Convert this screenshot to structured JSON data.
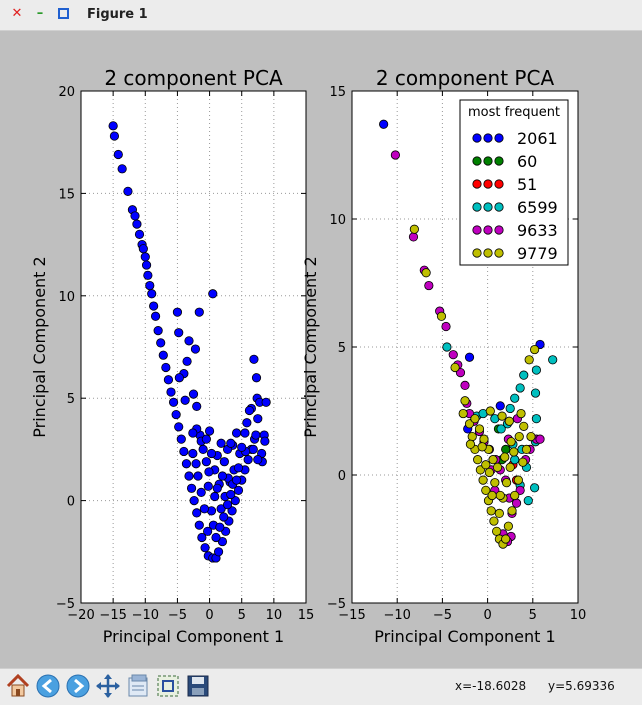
{
  "window": {
    "title": "Figure 1"
  },
  "toolbar": {
    "items": [
      "home-icon",
      "back-icon",
      "forward-icon",
      "pan-icon",
      "configure-icon",
      "zoom-icon",
      "save-icon"
    ],
    "x_readout": "x=-18.6028",
    "y_readout": "y=5.69336"
  },
  "colors": {
    "blue": "#0000ff",
    "green": "#008000",
    "red": "#ff0000",
    "cyan": "#00bfbf",
    "magenta": "#bf00bf",
    "yellow": "#bfbf00"
  },
  "chart_data": [
    {
      "type": "scatter",
      "title": "2 component PCA",
      "xlabel": "Principal Component 1",
      "ylabel": "Principal Component 2",
      "xlim": [
        -20,
        15
      ],
      "ylim": [
        -5,
        20
      ],
      "xticks": [
        "−20",
        "−15",
        "−10",
        "−5",
        "0",
        "5",
        "10",
        "15"
      ],
      "yticks": [
        "−5",
        "0",
        "5",
        "10",
        "15",
        "20"
      ],
      "grid": true,
      "series": [
        {
          "color": "#0000ff",
          "points": [
            [
              -15,
              18.3
            ],
            [
              -14.8,
              17.8
            ],
            [
              -14.2,
              16.9
            ],
            [
              -13.6,
              16.2
            ],
            [
              -12.7,
              15.1
            ],
            [
              -12,
              14.2
            ],
            [
              -11.6,
              13.9
            ],
            [
              -11.3,
              13.5
            ],
            [
              -10.9,
              13
            ],
            [
              -10.5,
              12.5
            ],
            [
              -10.3,
              12.3
            ],
            [
              -10,
              11.9
            ],
            [
              -9.8,
              11.5
            ],
            [
              -9.6,
              11
            ],
            [
              -9.3,
              10.5
            ],
            [
              -9,
              10.1
            ],
            [
              -8.7,
              9.5
            ],
            [
              -8.4,
              9
            ],
            [
              -8,
              8.3
            ],
            [
              -7.6,
              7.7
            ],
            [
              -7.2,
              7.1
            ],
            [
              -6.8,
              6.5
            ],
            [
              -6.4,
              5.9
            ],
            [
              -6,
              5.3
            ],
            [
              -5.6,
              4.8
            ],
            [
              -5.2,
              4.2
            ],
            [
              -4.8,
              3.6
            ],
            [
              -4.4,
              3
            ],
            [
              -4,
              2.4
            ],
            [
              -3.6,
              1.8
            ],
            [
              -3.2,
              1.2
            ],
            [
              -2.8,
              0.6
            ],
            [
              -2.4,
              0
            ],
            [
              -2,
              -0.6
            ],
            [
              -1.6,
              -1.2
            ],
            [
              -1.2,
              -1.8
            ],
            [
              -0.7,
              -2.3
            ],
            [
              -0.2,
              -2.7
            ],
            [
              0.5,
              -2.8
            ],
            [
              1,
              -2.8
            ],
            [
              1.4,
              -2.5
            ],
            [
              2,
              -2
            ],
            [
              2.5,
              -1.5
            ],
            [
              3,
              -1
            ],
            [
              3.5,
              -0.5
            ],
            [
              4,
              0
            ],
            [
              4.5,
              0.5
            ],
            [
              5,
              1
            ],
            [
              5.5,
              1.5
            ],
            [
              6,
              2
            ],
            [
              6.5,
              2.5
            ],
            [
              7,
              3
            ],
            [
              7.5,
              4
            ],
            [
              7.4,
              5
            ],
            [
              7.3,
              6
            ],
            [
              6.9,
              6.9
            ],
            [
              6.5,
              4.5
            ],
            [
              5.8,
              3.8
            ],
            [
              6.2,
              4.4
            ],
            [
              4.7,
              2.3
            ],
            [
              3.8,
              1.5
            ],
            [
              7.2,
              3.2
            ],
            [
              7.8,
              4.8
            ],
            [
              8.5,
              3.2
            ],
            [
              8.8,
              4.8
            ],
            [
              8.6,
              2.9
            ],
            [
              8.2,
              1.9
            ],
            [
              8.1,
              2.3
            ],
            [
              7.5,
              2
            ],
            [
              6.8,
              2.5
            ],
            [
              5.6,
              2.4
            ],
            [
              4.5,
              1.6
            ],
            [
              3.2,
              0.9
            ],
            [
              2.4,
              0.2
            ],
            [
              1.8,
              -0.4
            ],
            [
              2.9,
              1.1
            ],
            [
              3.6,
              2.7
            ],
            [
              4.2,
              3.3
            ],
            [
              5,
              2.6
            ],
            [
              5.5,
              3.3
            ],
            [
              2,
              1.2
            ],
            [
              1.5,
              0.8
            ],
            [
              0.8,
              1.5
            ],
            [
              -0.5,
              1.9
            ],
            [
              -1,
              2.5
            ],
            [
              -1.5,
              3.2
            ],
            [
              -2,
              3.5
            ],
            [
              -1.3,
              2.9
            ],
            [
              0,
              3.4
            ],
            [
              -0.5,
              3
            ],
            [
              1.2,
              2.2
            ],
            [
              1.8,
              2.8
            ],
            [
              -3.5,
              6.8
            ],
            [
              -3.2,
              7.8
            ],
            [
              -2.2,
              7.4
            ],
            [
              -2.5,
              5.2
            ],
            [
              -4,
              6.2
            ],
            [
              -4.8,
              8.2
            ],
            [
              -5,
              9.2
            ],
            [
              -4.7,
              6
            ],
            [
              -3.8,
              4.9
            ],
            [
              -2,
              4.6
            ],
            [
              -2.6,
              3.3
            ],
            [
              -1.6,
              9.2
            ],
            [
              0.5,
              10.1
            ],
            [
              -0.3,
              -1.5
            ],
            [
              0.3,
              -0.5
            ],
            [
              0.8,
              0.2
            ],
            [
              1.2,
              0.6
            ],
            [
              -0.8,
              -0.4
            ],
            [
              -1.3,
              0.4
            ],
            [
              -1.8,
              1.2
            ],
            [
              -0.2,
              0.7
            ],
            [
              0.6,
              -1.2
            ],
            [
              1,
              -1.8
            ],
            [
              1.6,
              -1.3
            ],
            [
              2.2,
              -0.8
            ],
            [
              2.8,
              -0.2
            ],
            [
              3.3,
              0.3
            ],
            [
              3.6,
              0.8
            ],
            [
              4.2,
              1
            ],
            [
              2.3,
              1.9
            ],
            [
              2.8,
              2.5
            ],
            [
              3.3,
              2.8
            ],
            [
              -0.1,
              1.4
            ],
            [
              0.3,
              2.3
            ],
            [
              -2.1,
              1.8
            ],
            [
              -2.6,
              2.3
            ]
          ]
        }
      ]
    },
    {
      "type": "scatter",
      "title": "2 component PCA",
      "xlabel": "Principal Component 1",
      "ylabel": "Principal Component 2",
      "xlim": [
        -15,
        10
      ],
      "ylim": [
        -5,
        15
      ],
      "xticks": [
        "−15",
        "−10",
        "−5",
        "0",
        "5",
        "10"
      ],
      "yticks": [
        "−5",
        "0",
        "5",
        "10",
        "15"
      ],
      "grid": true,
      "legend": {
        "title": "most frequent",
        "placement": "top-right"
      },
      "series": [
        {
          "name": "2061",
          "color": "#0000ff",
          "points": [
            [
              -11.5,
              13.7
            ],
            [
              -2,
              4.6
            ],
            [
              5.8,
              5.1
            ],
            [
              -2.2,
              1.8
            ],
            [
              1.4,
              2.7
            ]
          ]
        },
        {
          "name": "60",
          "color": "#008000",
          "points": [
            [
              1.2,
              1.8
            ],
            [
              2,
              1
            ],
            [
              1.6,
              0.6
            ]
          ]
        },
        {
          "name": "51",
          "color": "#ff0000",
          "points": [
            [
              2.8,
              0.4
            ],
            [
              3.2,
              -0.2
            ]
          ]
        },
        {
          "name": "6599",
          "color": "#00bfbf",
          "points": [
            [
              -4.5,
              5
            ],
            [
              7.2,
              4.5
            ],
            [
              5.4,
              4.1
            ],
            [
              4,
              3.9
            ],
            [
              3.6,
              3.4
            ],
            [
              3,
              3
            ],
            [
              2.5,
              2.6
            ],
            [
              5.3,
              3.2
            ],
            [
              5.4,
              2.2
            ],
            [
              5.3,
              1.3
            ],
            [
              5.2,
              -0.5
            ],
            [
              3.8,
              1
            ],
            [
              3,
              0.6
            ],
            [
              4.3,
              0.3
            ],
            [
              2.2,
              2
            ],
            [
              -1.2,
              2.3
            ],
            [
              -0.5,
              2.4
            ],
            [
              0.8,
              2.2
            ],
            [
              1.5,
              1.8
            ],
            [
              2.8,
              1.2
            ],
            [
              3.6,
              -0.4
            ],
            [
              4.5,
              -1
            ]
          ]
        },
        {
          "name": "9633",
          "color": "#bf00bf",
          "points": [
            [
              -10.2,
              12.5
            ],
            [
              -8.2,
              9.3
            ],
            [
              -7,
              8
            ],
            [
              -6.5,
              7.4
            ],
            [
              -5.3,
              6.4
            ],
            [
              -4.6,
              5.8
            ],
            [
              -3.8,
              4.7
            ],
            [
              -3.3,
              4.3
            ],
            [
              -3,
              4
            ],
            [
              -2.5,
              3.5
            ],
            [
              -2.3,
              2.8
            ],
            [
              -2,
              2.4
            ],
            [
              -1.5,
              2.1
            ],
            [
              -0.9,
              1.7
            ],
            [
              -0.4,
              1.3
            ],
            [
              0.2,
              1
            ],
            [
              0.9,
              0.6
            ],
            [
              1.4,
              0.2
            ],
            [
              2,
              -0.2
            ],
            [
              2.4,
              -0.9
            ],
            [
              2.7,
              -1.5
            ],
            [
              3.2,
              -1.1
            ],
            [
              3.6,
              -0.6
            ],
            [
              4.2,
              0.6
            ],
            [
              4.7,
              1
            ],
            [
              5.4,
              1.4
            ],
            [
              5.8,
              1.4
            ],
            [
              3.3,
              2.2
            ],
            [
              2.3,
              1.4
            ],
            [
              2.6,
              -2.4
            ],
            [
              2.2,
              -2.6
            ],
            [
              1.7,
              -2.3
            ],
            [
              0.8,
              -0.6
            ],
            [
              0.4,
              0.2
            ]
          ]
        },
        {
          "name": "9779",
          "color": "#bfbf00",
          "points": [
            [
              -8.1,
              9.6
            ],
            [
              -6.8,
              7.9
            ],
            [
              -5.1,
              6.2
            ],
            [
              -3.6,
              4.2
            ],
            [
              -2.5,
              2.9
            ],
            [
              -2,
              2
            ],
            [
              -1.7,
              1.5
            ],
            [
              -1.4,
              1
            ],
            [
              -1.1,
              0.6
            ],
            [
              -0.8,
              0.2
            ],
            [
              -0.5,
              -0.2
            ],
            [
              -0.2,
              -0.6
            ],
            [
              0.1,
              -1
            ],
            [
              0.4,
              -1.4
            ],
            [
              0.7,
              -1.8
            ],
            [
              1,
              -2.2
            ],
            [
              1.3,
              -2.5
            ],
            [
              1.7,
              -2.7
            ],
            [
              2,
              -2.5
            ],
            [
              2.3,
              -2
            ],
            [
              2.7,
              -1.4
            ],
            [
              3,
              -0.8
            ],
            [
              3.4,
              -0.2
            ],
            [
              3.9,
              0.5
            ],
            [
              4.3,
              1
            ],
            [
              4.8,
              1.5
            ],
            [
              5.2,
              4.9
            ],
            [
              4.6,
              4.5
            ],
            [
              4,
              1.9
            ],
            [
              3.5,
              1.5
            ],
            [
              2.9,
              0.9
            ],
            [
              2.5,
              0.3
            ],
            [
              2.1,
              -0.3
            ],
            [
              1.7,
              -0.9
            ],
            [
              1.3,
              -1.5
            ],
            [
              -1.4,
              2.2
            ],
            [
              -0.9,
              1.8
            ],
            [
              -0.4,
              1.4
            ],
            [
              0.1,
              1
            ],
            [
              0.6,
              0.6
            ],
            [
              1.1,
              0.3
            ],
            [
              1.6,
              2.3
            ],
            [
              2.4,
              2.1
            ],
            [
              0.3,
              2.5
            ],
            [
              -0.6,
              1.1
            ],
            [
              0.2,
              0.1
            ],
            [
              0.8,
              -0.3
            ],
            [
              1.4,
              -0.8
            ],
            [
              -1.9,
              1.2
            ],
            [
              -2.7,
              2.4
            ],
            [
              -0.2,
              0.4
            ],
            [
              0.5,
              -0.8
            ],
            [
              1.9,
              0.7
            ],
            [
              2.6,
              1.3
            ],
            [
              3.7,
              2.4
            ]
          ]
        }
      ]
    }
  ]
}
